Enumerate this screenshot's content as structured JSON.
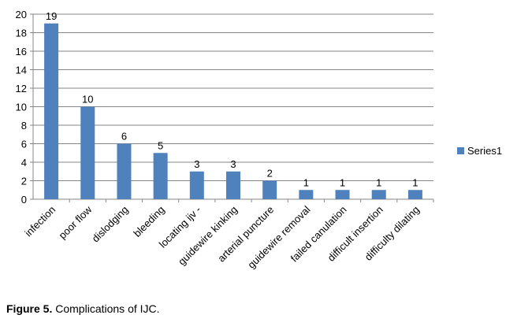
{
  "chart_data": {
    "type": "bar",
    "categories": [
      "infection",
      "poor flow",
      "dislodging",
      "bleeding",
      "locating ijv -",
      "guidewire kinking",
      "arterial puncture",
      "guidewire removal",
      "failed canulation",
      "difficult insertion",
      "difficulty dilating"
    ],
    "series": [
      {
        "name": "Series1",
        "values": [
          19,
          10,
          6,
          5,
          3,
          3,
          2,
          1,
          1,
          1,
          1
        ]
      }
    ],
    "ylim": [
      0,
      20
    ],
    "yticks": [
      0,
      2,
      4,
      6,
      8,
      10,
      12,
      14,
      16,
      18,
      20
    ],
    "grid": true,
    "legend_position": "right",
    "bar_color": "#4F81BD"
  },
  "caption": {
    "label": "Figure 5.",
    "text": "Complications of IJC."
  }
}
